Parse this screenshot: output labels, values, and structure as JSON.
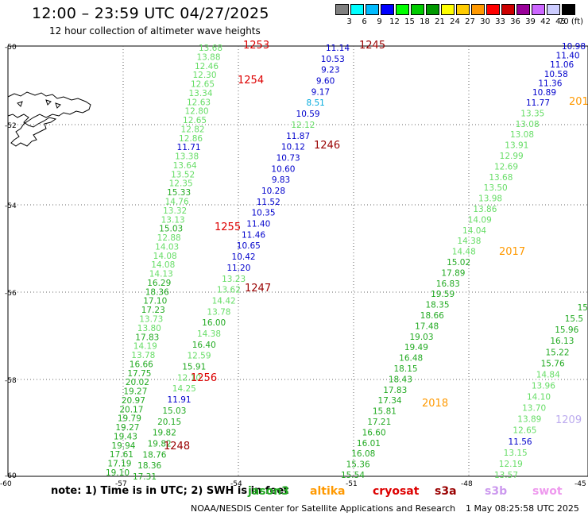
{
  "header": {
    "title": "12:00 – 23:59 UTC 04/27/2025",
    "subtitle": "12 hour collection of altimeter wave heights"
  },
  "legend": {
    "levels": [
      "3",
      "6",
      "9",
      "12",
      "15",
      "18",
      "21",
      "24",
      "27",
      "30",
      "33",
      "36",
      "39",
      "42",
      "45",
      "70 (ft)"
    ],
    "colors": [
      "#808080",
      "#00ffff",
      "#00bbff",
      "#0000ff",
      "#00ff00",
      "#00cc00",
      "#009900",
      "#ffff00",
      "#ffcc00",
      "#ff9900",
      "#ff0000",
      "#cc0000",
      "#990099",
      "#cc66ff",
      "#ccccff",
      "#000000"
    ]
  },
  "axes": {
    "lat_labels": [
      "-50",
      "-52",
      "-54",
      "-56",
      "-58",
      "-60"
    ],
    "lon_labels": [
      "-60",
      "-57",
      "-54",
      "-51",
      "-48",
      "-45"
    ]
  },
  "passes": [
    {
      "label": "1253",
      "color": "#dd0000"
    },
    {
      "label": "1254",
      "color": "#dd0000"
    },
    {
      "label": "1255",
      "color": "#dd0000"
    },
    {
      "label": "1256",
      "color": "#dd0000"
    },
    {
      "label": "1245",
      "color": "#990000"
    },
    {
      "label": "1246",
      "color": "#990000"
    },
    {
      "label": "1247",
      "color": "#990000"
    },
    {
      "label": "1248",
      "color": "#990000"
    },
    {
      "label": "2017",
      "color": "#ff9900"
    },
    {
      "label": "2018",
      "color": "#ff9900"
    },
    {
      "label": "201",
      "color": "#ff9900"
    },
    {
      "label": "1209",
      "color": "#bbaaee"
    }
  ],
  "tracks": [
    {
      "name": "track-a",
      "values": [
        {
          "t": "13.68",
          "c": "#66dd66"
        },
        {
          "t": "13.88",
          "c": "#66dd66"
        },
        {
          "t": "12.46",
          "c": "#66dd66"
        },
        {
          "t": "12.30",
          "c": "#66dd66"
        },
        {
          "t": "12.65",
          "c": "#66dd66"
        },
        {
          "t": "13.34",
          "c": "#66dd66"
        },
        {
          "t": "12.63",
          "c": "#66dd66"
        },
        {
          "t": "12.80",
          "c": "#66dd66"
        },
        {
          "t": "12.65",
          "c": "#66dd66"
        },
        {
          "t": "12.82",
          "c": "#66dd66"
        },
        {
          "t": "12.86",
          "c": "#66dd66"
        },
        {
          "t": "11.71",
          "c": "#0000cc"
        },
        {
          "t": "13.38",
          "c": "#66dd66"
        },
        {
          "t": "13.64",
          "c": "#66dd66"
        },
        {
          "t": "13.52",
          "c": "#66dd66"
        },
        {
          "t": "12.35",
          "c": "#66dd66"
        },
        {
          "t": "15.33",
          "c": "#22aa22"
        },
        {
          "t": "14.76",
          "c": "#66dd66"
        },
        {
          "t": "13.32",
          "c": "#66dd66"
        },
        {
          "t": "13.13",
          "c": "#66dd66"
        },
        {
          "t": "15.03",
          "c": "#22aa22"
        },
        {
          "t": "12.88",
          "c": "#66dd66"
        },
        {
          "t": "14.03",
          "c": "#66dd66"
        },
        {
          "t": "14.08",
          "c": "#66dd66"
        },
        {
          "t": "14.08",
          "c": "#66dd66"
        },
        {
          "t": "14.13",
          "c": "#66dd66"
        },
        {
          "t": "16.29",
          "c": "#22aa22"
        },
        {
          "t": "18.36",
          "c": "#22aa22"
        },
        {
          "t": "17.10",
          "c": "#22aa22"
        },
        {
          "t": "17.23",
          "c": "#22aa22"
        },
        {
          "t": "13.73",
          "c": "#66dd66"
        },
        {
          "t": "13.80",
          "c": "#66dd66"
        },
        {
          "t": "17.83",
          "c": "#22aa22"
        },
        {
          "t": "14.19",
          "c": "#66dd66"
        },
        {
          "t": "13.78",
          "c": "#66dd66"
        },
        {
          "t": "16.66",
          "c": "#22aa22"
        },
        {
          "t": "17.75",
          "c": "#22aa22"
        },
        {
          "t": "20.02",
          "c": "#22aa22"
        },
        {
          "t": "19.27",
          "c": "#22aa22"
        },
        {
          "t": "20.97",
          "c": "#22aa22"
        },
        {
          "t": "20.17",
          "c": "#22aa22"
        },
        {
          "t": "19.79",
          "c": "#22aa22"
        },
        {
          "t": "19.27",
          "c": "#22aa22"
        },
        {
          "t": "19.43",
          "c": "#22aa22"
        },
        {
          "t": "19.94",
          "c": "#22aa22"
        },
        {
          "t": "17.61",
          "c": "#22aa22"
        },
        {
          "t": "17.19",
          "c": "#22aa22"
        },
        {
          "t": "19.10",
          "c": "#22aa22"
        }
      ]
    },
    {
      "name": "track-b",
      "values": [
        {
          "t": "11.14",
          "c": "#0000cc"
        },
        {
          "t": "10.53",
          "c": "#0000cc"
        },
        {
          "t": "9.23",
          "c": "#0000cc"
        },
        {
          "t": "9.60",
          "c": "#0000cc"
        },
        {
          "t": "9.17",
          "c": "#0000cc"
        },
        {
          "t": "8.51",
          "c": "#00aadd"
        },
        {
          "t": "10.59",
          "c": "#0000cc"
        },
        {
          "t": "12.12",
          "c": "#66dd66"
        },
        {
          "t": "11.87",
          "c": "#0000cc"
        },
        {
          "t": "10.12",
          "c": "#0000cc"
        },
        {
          "t": "10.73",
          "c": "#0000cc"
        },
        {
          "t": "10.60",
          "c": "#0000cc"
        },
        {
          "t": "9.83",
          "c": "#0000cc"
        },
        {
          "t": "10.28",
          "c": "#0000cc"
        },
        {
          "t": "11.52",
          "c": "#0000cc"
        },
        {
          "t": "10.35",
          "c": "#0000cc"
        },
        {
          "t": "11.40",
          "c": "#0000cc"
        },
        {
          "t": "11.46",
          "c": "#0000cc"
        },
        {
          "t": "10.65",
          "c": "#0000cc"
        },
        {
          "t": "10.42",
          "c": "#0000cc"
        },
        {
          "t": "11.20",
          "c": "#0000cc"
        },
        {
          "t": "13.23",
          "c": "#66dd66"
        },
        {
          "t": "13.62",
          "c": "#66dd66"
        },
        {
          "t": "14.42",
          "c": "#66dd66"
        },
        {
          "t": "13.78",
          "c": "#66dd66"
        },
        {
          "t": "16.00",
          "c": "#22aa22"
        },
        {
          "t": "14.38",
          "c": "#66dd66"
        },
        {
          "t": "16.40",
          "c": "#22aa22"
        },
        {
          "t": "12.59",
          "c": "#66dd66"
        },
        {
          "t": "15.91",
          "c": "#22aa22"
        },
        {
          "t": "12.10",
          "c": "#66dd66"
        },
        {
          "t": "14.25",
          "c": "#66dd66"
        },
        {
          "t": "11.91",
          "c": "#0000cc"
        },
        {
          "t": "15.03",
          "c": "#22aa22"
        },
        {
          "t": "20.15",
          "c": "#22aa22"
        },
        {
          "t": "19.82",
          "c": "#22aa22"
        },
        {
          "t": "19.82",
          "c": "#22aa22"
        },
        {
          "t": "18.76",
          "c": "#22aa22"
        },
        {
          "t": "18.36",
          "c": "#22aa22"
        },
        {
          "t": "17.31",
          "c": "#22aa22"
        }
      ]
    },
    {
      "name": "track-c",
      "values": [
        {
          "t": "11.77",
          "c": "#0000cc"
        },
        {
          "t": "13.35",
          "c": "#66dd66"
        },
        {
          "t": "13.08",
          "c": "#66dd66"
        },
        {
          "t": "13.08",
          "c": "#66dd66"
        },
        {
          "t": "13.91",
          "c": "#66dd66"
        },
        {
          "t": "12.99",
          "c": "#66dd66"
        },
        {
          "t": "12.69",
          "c": "#66dd66"
        },
        {
          "t": "13.68",
          "c": "#66dd66"
        },
        {
          "t": "13.50",
          "c": "#66dd66"
        },
        {
          "t": "13.98",
          "c": "#66dd66"
        },
        {
          "t": "13.86",
          "c": "#66dd66"
        },
        {
          "t": "14.09",
          "c": "#66dd66"
        },
        {
          "t": "14.04",
          "c": "#66dd66"
        },
        {
          "t": "14.38",
          "c": "#66dd66"
        },
        {
          "t": "14.48",
          "c": "#66dd66"
        },
        {
          "t": "15.02",
          "c": "#22aa22"
        },
        {
          "t": "17.89",
          "c": "#22aa22"
        },
        {
          "t": "16.83",
          "c": "#22aa22"
        },
        {
          "t": "19.59",
          "c": "#22aa22"
        },
        {
          "t": "18.35",
          "c": "#22aa22"
        },
        {
          "t": "18.66",
          "c": "#22aa22"
        },
        {
          "t": "17.48",
          "c": "#22aa22"
        },
        {
          "t": "19.03",
          "c": "#22aa22"
        },
        {
          "t": "19.49",
          "c": "#22aa22"
        },
        {
          "t": "16.48",
          "c": "#22aa22"
        },
        {
          "t": "18.15",
          "c": "#22aa22"
        },
        {
          "t": "18.43",
          "c": "#22aa22"
        },
        {
          "t": "17.83",
          "c": "#22aa22"
        },
        {
          "t": "17.34",
          "c": "#22aa22"
        },
        {
          "t": "15.81",
          "c": "#22aa22"
        },
        {
          "t": "17.21",
          "c": "#22aa22"
        },
        {
          "t": "16.60",
          "c": "#22aa22"
        },
        {
          "t": "16.01",
          "c": "#22aa22"
        },
        {
          "t": "16.08",
          "c": "#22aa22"
        },
        {
          "t": "15.36",
          "c": "#22aa22"
        },
        {
          "t": "15.54",
          "c": "#22aa22"
        }
      ]
    },
    {
      "name": "track-d",
      "values": [
        {
          "t": "10.98",
          "c": "#0000cc"
        },
        {
          "t": "11.40",
          "c": "#0000cc"
        },
        {
          "t": "11.06",
          "c": "#0000cc"
        },
        {
          "t": "10.58",
          "c": "#0000cc"
        },
        {
          "t": "11.36",
          "c": "#0000cc"
        },
        {
          "t": "10.89",
          "c": "#0000cc"
        }
      ]
    },
    {
      "name": "track-e",
      "values": [
        {
          "t": "15",
          "c": "#22aa22"
        },
        {
          "t": "15.5",
          "c": "#22aa22"
        },
        {
          "t": "15.96",
          "c": "#22aa22"
        },
        {
          "t": "16.13",
          "c": "#22aa22"
        },
        {
          "t": "15.22",
          "c": "#22aa22"
        },
        {
          "t": "15.76",
          "c": "#22aa22"
        },
        {
          "t": "14.84",
          "c": "#66dd66"
        },
        {
          "t": "13.96",
          "c": "#66dd66"
        },
        {
          "t": "14.10",
          "c": "#66dd66"
        },
        {
          "t": "13.70",
          "c": "#66dd66"
        },
        {
          "t": "13.89",
          "c": "#66dd66"
        },
        {
          "t": "12.65",
          "c": "#66dd66"
        },
        {
          "t": "11.56",
          "c": "#0000cc"
        },
        {
          "t": "13.15",
          "c": "#66dd66"
        },
        {
          "t": "12.19",
          "c": "#66dd66"
        },
        {
          "t": "13.57",
          "c": "#66dd66"
        }
      ]
    }
  ],
  "footer": {
    "note": "note:  1) Time is in UTC;  2) SWH is in feet",
    "satellites": [
      {
        "name": "jason3",
        "color": "#22aa22"
      },
      {
        "name": "altika",
        "color": "#ff9900"
      },
      {
        "name": "cryosat",
        "color": "#dd0000"
      },
      {
        "name": "s3a",
        "color": "#990000"
      },
      {
        "name": "s3b",
        "color": "#cc99ee"
      },
      {
        "name": "swot",
        "color": "#ee99ee"
      }
    ],
    "credit": "NOAA/NESDIS Center for Satellite Applications and Research",
    "timestamp": "1 May 08:25:58 UTC 2025"
  }
}
